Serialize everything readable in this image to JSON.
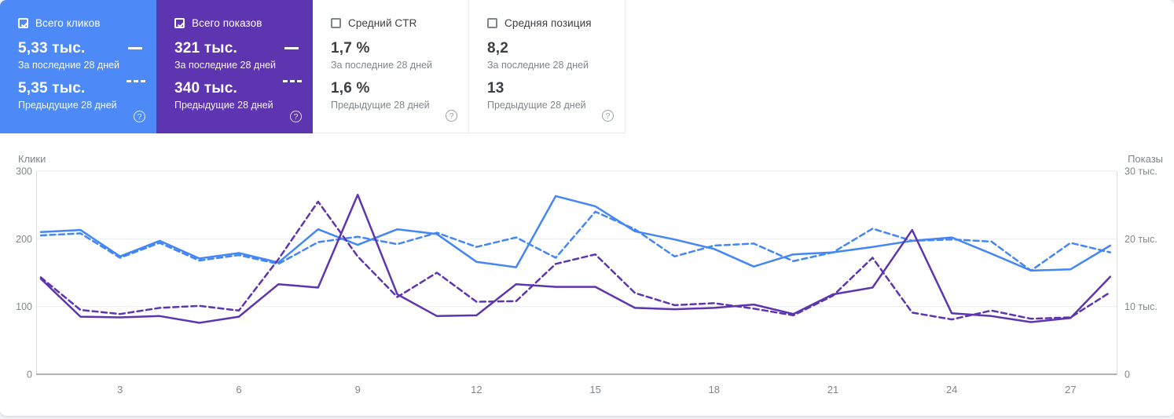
{
  "cards": [
    {
      "label": "Всего кликов",
      "checked": true,
      "accent": "#4e8af7",
      "value_current": "5,33 тыс.",
      "caption_current": "За последние 28 дней",
      "value_previous": "5,35 тыс.",
      "caption_previous": "Предыдущие 28 дней"
    },
    {
      "label": "Всего показов",
      "checked": true,
      "accent": "#5e35b1",
      "value_current": "321 тыс.",
      "caption_current": "За последние 28 дней",
      "value_previous": "340 тыс.",
      "caption_previous": "Предыдущие 28 дней"
    },
    {
      "label": "Средний CTR",
      "checked": false,
      "value_current": "1,7 %",
      "caption_current": "За последние 28 дней",
      "value_previous": "1,6 %",
      "caption_previous": "Предыдущие 28 дней"
    },
    {
      "label": "Средняя позиция",
      "checked": false,
      "value_current": "8,2",
      "caption_current": "За последние 28 дней",
      "value_previous": "13",
      "caption_previous": "Предыдущие 28 дней"
    }
  ],
  "icons": {
    "help": "?"
  },
  "chart_data": {
    "type": "line",
    "x_unit": "day of range (28 days)",
    "x": [
      1,
      2,
      3,
      4,
      5,
      6,
      7,
      8,
      9,
      10,
      11,
      12,
      13,
      14,
      15,
      16,
      17,
      18,
      19,
      20,
      21,
      22,
      23,
      24,
      25,
      26,
      27,
      28
    ],
    "x_ticks": [
      3,
      6,
      9,
      12,
      15,
      18,
      21,
      24,
      27
    ],
    "left_axis": {
      "label": "Клики",
      "range": [
        0,
        300
      ],
      "ticks": [
        "300",
        "200",
        "100",
        "0"
      ]
    },
    "right_axis": {
      "label": "Показы",
      "range_thousands": [
        0,
        30
      ],
      "ticks": [
        "30 тыс.",
        "20 тыс.",
        "10 тыс.",
        "0"
      ]
    },
    "grid": "horizontal",
    "series": [
      {
        "name": "Всего кликов — За последние 28 дней",
        "axis": "left",
        "style": "solid",
        "color": "#4486f5",
        "values": [
          210,
          213,
          174,
          197,
          171,
          179,
          165,
          214,
          191,
          214,
          207,
          166,
          158,
          263,
          248,
          211,
          199,
          185,
          159,
          177,
          180,
          188,
          197,
          202,
          178,
          153,
          155,
          190
        ]
      },
      {
        "name": "Всего кликов — Предыдущие 28 дней",
        "axis": "left",
        "style": "dashed",
        "color": "#4486f5",
        "values": [
          205,
          208,
          172,
          194,
          168,
          176,
          163,
          195,
          203,
          192,
          209,
          188,
          202,
          172,
          240,
          214,
          174,
          190,
          193,
          167,
          180,
          215,
          197,
          199,
          196,
          153,
          194,
          180
        ]
      },
      {
        "name": "Всего показов (тыс.) — За последние 28 дней",
        "axis": "right",
        "style": "solid",
        "color": "#5e35b1",
        "values": [
          14.1,
          8.5,
          8.4,
          8.6,
          7.6,
          8.5,
          13.3,
          12.8,
          26.5,
          11.8,
          8.6,
          8.7,
          13.3,
          12.9,
          12.9,
          9.8,
          9.6,
          9.8,
          10.3,
          8.9,
          11.8,
          12.8,
          21.3,
          9.0,
          8.6,
          7.7,
          8.3,
          14.4
        ]
      },
      {
        "name": "Всего показов (тыс.) — Предыдущие 28 дней",
        "axis": "right",
        "style": "dashed",
        "color": "#5e35b1",
        "values": [
          14.3,
          9.5,
          8.9,
          9.8,
          10.1,
          9.4,
          17.0,
          25.5,
          17.4,
          11.4,
          15.0,
          10.7,
          10.8,
          16.3,
          17.7,
          12.0,
          10.2,
          10.5,
          9.7,
          8.7,
          11.6,
          17.2,
          9.1,
          8.1,
          9.4,
          8.2,
          8.4,
          12.1
        ]
      }
    ]
  }
}
